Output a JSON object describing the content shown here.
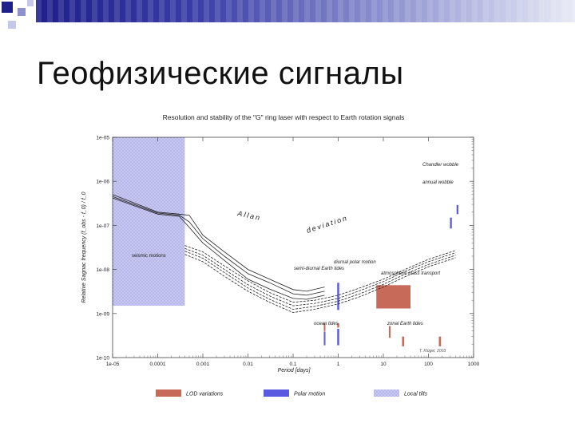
{
  "slide": {
    "title": "Геофизические сигналы"
  },
  "chart_data": {
    "type": "line",
    "title": "Resolution and stability of the \"G\" ring laser with respect to Earth rotation signals",
    "xlabel": "Period [days]",
    "ylabel": "Relative Sagnac frequency (f_obs - f_0) / f_0",
    "x_scale": "log",
    "y_scale": "log",
    "xlim": [
      1e-05,
      1000
    ],
    "ylim": [
      1e-10,
      1e-05
    ],
    "xticks": [
      "1e-05",
      "0.0001",
      "0.001",
      "0.01",
      "0.1",
      "1",
      "10",
      "100",
      "1000"
    ],
    "yticks": [
      "1e-05",
      "1e-06",
      "1e-07",
      "1e-08",
      "1e-09",
      "1e-10"
    ],
    "annotations": {
      "allan": "Allan",
      "deviation": "deviation",
      "seismic": "seismic motions",
      "chandler": "Chandler wobble",
      "annual": "annual wobble",
      "diurnal": "diurnal polar motion",
      "semidiurnal": "semi-diurnal Earth tides",
      "atmospheric": "atmospheric mass transport",
      "ocean": "ocean tides",
      "zonal": "zonal Earth tides",
      "credit": "T. Klügel, 2003"
    },
    "legend": {
      "placement": "bottom",
      "items": [
        {
          "label": "LOD variations",
          "color": "#c86a5a"
        },
        {
          "label": "Polar motion",
          "color": "#5a5ae0"
        },
        {
          "label": "Local tilts",
          "color": "#c8c8f0"
        }
      ]
    },
    "series": [
      {
        "style": "solid",
        "x": [
          1e-05,
          0.0001,
          0.0003,
          0.0005,
          0.001,
          0.003,
          0.01,
          0.03,
          0.1,
          0.2,
          0.5
        ],
        "y": [
          5e-07,
          2e-07,
          1.8e-07,
          1.7e-07,
          6e-08,
          2.5e-08,
          1e-08,
          6e-09,
          3.5e-09,
          3.2e-09,
          4e-09
        ]
      },
      {
        "style": "solid",
        "x": [
          1e-05,
          0.0001,
          0.0003,
          0.0005,
          0.001,
          0.003,
          0.01,
          0.03,
          0.1,
          0.2,
          0.5
        ],
        "y": [
          4.5e-07,
          1.9e-07,
          1.7e-07,
          1.2e-07,
          5e-08,
          2e-08,
          8e-09,
          5e-09,
          2.8e-09,
          2.6e-09,
          3.2e-09
        ]
      },
      {
        "style": "solid",
        "x": [
          1e-05,
          0.0001,
          0.0003,
          0.0005,
          0.001,
          0.003,
          0.01,
          0.03,
          0.1,
          0.2,
          0.5
        ],
        "y": [
          4.2e-07,
          1.8e-07,
          1.6e-07,
          9e-08,
          4e-08,
          1.6e-08,
          6e-09,
          3.6e-09,
          2.2e-09,
          2.1e-09,
          2.6e-09
        ]
      },
      {
        "style": "dashed",
        "x": [
          0.0004,
          0.001,
          0.003,
          0.01,
          0.03,
          0.1,
          0.3,
          1,
          3,
          10,
          30,
          100,
          400
        ],
        "y": [
          3.5e-08,
          2.5e-08,
          1.2e-08,
          5.5e-09,
          3e-09,
          1.8e-09,
          2e-09,
          2.6e-09,
          3.8e-09,
          6e-09,
          1e-08,
          1.7e-08,
          2.7e-08
        ]
      },
      {
        "style": "dashed",
        "x": [
          0.0004,
          0.001,
          0.003,
          0.01,
          0.03,
          0.1,
          0.3,
          1,
          3,
          10,
          30,
          100,
          400
        ],
        "y": [
          3e-08,
          2.1e-08,
          1e-08,
          4.5e-09,
          2.5e-09,
          1.5e-09,
          1.7e-09,
          2.2e-09,
          3.3e-09,
          5.3e-09,
          9e-09,
          1.5e-08,
          2.4e-08
        ]
      },
      {
        "style": "dashed",
        "x": [
          0.0004,
          0.001,
          0.003,
          0.01,
          0.03,
          0.1,
          0.3,
          1,
          3,
          10,
          30,
          100,
          400
        ],
        "y": [
          2.6e-08,
          1.8e-08,
          8.5e-09,
          3.8e-09,
          2.1e-09,
          1.25e-09,
          1.45e-09,
          1.9e-09,
          2.8e-09,
          4.6e-09,
          7.8e-09,
          1.3e-08,
          2.1e-08
        ]
      },
      {
        "style": "dashed",
        "x": [
          0.0004,
          0.001,
          0.003,
          0.01,
          0.03,
          0.1,
          0.3,
          1,
          3,
          10,
          30,
          100,
          400
        ],
        "y": [
          2.2e-08,
          1.5e-08,
          7e-09,
          3.2e-09,
          1.8e-09,
          1.05e-09,
          1.25e-09,
          1.65e-09,
          2.4e-09,
          4e-09,
          6.8e-09,
          1.15e-08,
          1.85e-08
        ]
      }
    ],
    "regions": [
      {
        "kind": "local-tilts",
        "x": [
          1e-05,
          0.0004
        ],
        "y": [
          1.5e-09,
          1e-05
        ]
      },
      {
        "kind": "atmospheric",
        "x": [
          7,
          40
        ],
        "y": [
          1.3e-09,
          4.4e-09
        ]
      },
      {
        "kind": "polar",
        "x": [
          0.95,
          1.05
        ],
        "y": [
          1.2e-09,
          5e-09
        ]
      },
      {
        "kind": "polar",
        "x": [
          0.95,
          1.05
        ],
        "y": [
          1.9e-10,
          4.5e-10
        ]
      },
      {
        "kind": "polar",
        "x": [
          0.48,
          0.52
        ],
        "y": [
          1.9e-10,
          3.9e-10
        ]
      },
      {
        "kind": "polar",
        "x": [
          300,
          330
        ],
        "y": [
          8.5e-08,
          1.5e-07
        ]
      },
      {
        "kind": "polar",
        "x": [
          420,
          460
        ],
        "y": [
          1.8e-07,
          2.9e-07
        ]
      },
      {
        "kind": "lod",
        "x": [
          0.48,
          0.52
        ],
        "y": [
          4e-10,
          6e-10
        ]
      },
      {
        "kind": "lod",
        "x": [
          0.95,
          1.05
        ],
        "y": [
          4.8e-10,
          6e-10
        ]
      },
      {
        "kind": "lod",
        "x": [
          13.3,
          14.5
        ],
        "y": [
          2.8e-10,
          5.2e-10
        ]
      },
      {
        "kind": "lod",
        "x": [
          26,
          29
        ],
        "y": [
          1.8e-10,
          3e-10
        ]
      },
      {
        "kind": "lod",
        "x": [
          170,
          190
        ],
        "y": [
          1.8e-10,
          3e-10
        ]
      }
    ]
  }
}
